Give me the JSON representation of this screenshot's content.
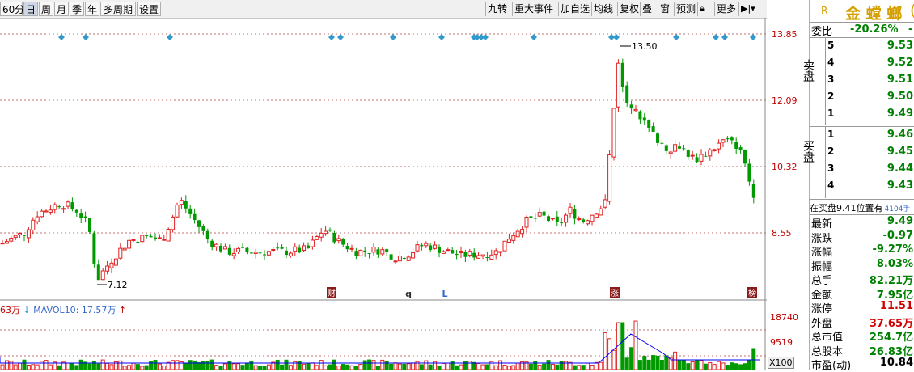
{
  "toolbar": {
    "period_tabs": [
      "60分",
      "日",
      "周",
      "月",
      "季",
      "年",
      "多周期",
      "设置"
    ],
    "active_tab": "日",
    "right_tabs": [
      "九转",
      "重大事件",
      "加自选",
      "均线",
      "复权",
      "叠",
      "窗",
      "预测",
      "锁-icon",
      "更多",
      "toggle-icon"
    ]
  },
  "stock": {
    "badge": "R",
    "name": "金 螳 螂",
    "paren": "("
  },
  "chart": {
    "y_ticks": [
      "13.85",
      "12.09",
      "10.32",
      "8.55"
    ],
    "high_label": "13.50",
    "low_label": "7.12",
    "event_markers": [
      "财",
      "q",
      "L",
      "涨",
      "榜"
    ],
    "volume_legend": {
      "prefix": "63万",
      "mavol": "MAVOL10: 17.57万"
    },
    "volume_ticks": [
      "18740",
      "9519",
      "X100"
    ]
  },
  "order_book": {
    "weibi_label": "委比",
    "weibi_value": "-20.26%",
    "weibi_extra": "-",
    "sell_label": "卖盘",
    "buy_label": "买盘",
    "asks": [
      {
        "level": "5",
        "price": "9.53"
      },
      {
        "level": "4",
        "price": "9.52"
      },
      {
        "level": "3",
        "price": "9.51"
      },
      {
        "level": "2",
        "price": "9.50"
      },
      {
        "level": "1",
        "price": "9.49"
      }
    ],
    "bids": [
      {
        "level": "1",
        "price": "9.46"
      },
      {
        "level": "2",
        "price": "9.45"
      },
      {
        "level": "3",
        "price": "9.44"
      },
      {
        "level": "4",
        "price": "9.43"
      }
    ],
    "notice": {
      "text": "在买盘9.41位置有",
      "count": "4104手"
    }
  },
  "quote": [
    {
      "label": "最新",
      "value": "9.49",
      "color": "green"
    },
    {
      "label": "涨跌",
      "value": "-0.97",
      "color": "green"
    },
    {
      "label": "涨幅",
      "value": "-9.27%",
      "color": "green"
    },
    {
      "label": "振幅",
      "value": "8.03%",
      "color": "green"
    },
    {
      "label": "总手",
      "value": "82.21万",
      "color": "green"
    },
    {
      "label": "金额",
      "value": "7.95亿",
      "color": "green"
    },
    {
      "label": "涨停",
      "value": "11.51",
      "color": "red"
    },
    {
      "label": "外盘",
      "value": "37.65万",
      "color": "red"
    },
    {
      "label": "总市值",
      "value": "254.7亿",
      "color": "green"
    },
    {
      "label": "总股本",
      "value": "26.83亿",
      "color": "green"
    },
    {
      "label": "市盈(动)",
      "value": "10.84",
      "color": "black"
    }
  ],
  "colors": {
    "up": "#e02020",
    "down": "#009900",
    "grid": "#c07070",
    "marker": "#3399cc",
    "ma": "#0000ff"
  }
}
